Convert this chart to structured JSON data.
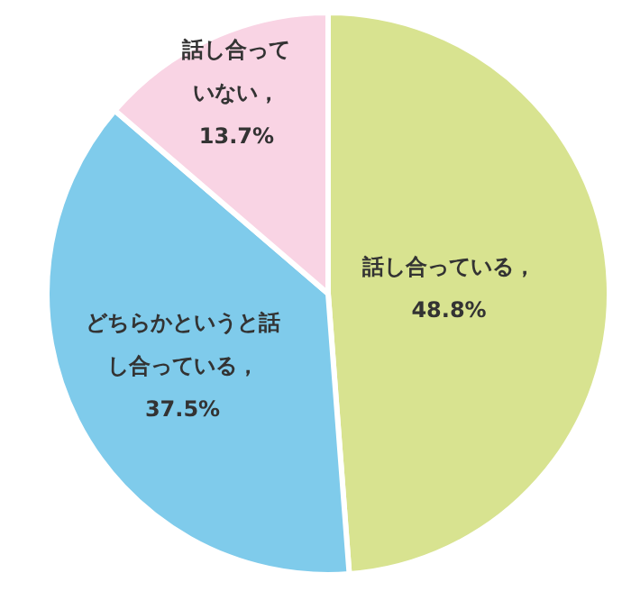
{
  "chart_data": {
    "type": "pie",
    "categories": [
      "話し合っている",
      "どちらかというと話し合っている",
      "話し合っていない"
    ],
    "values": [
      48.8,
      37.5,
      13.7
    ],
    "value_labels": [
      "，48.8%",
      "，37.5%",
      "，13.7%"
    ],
    "colors": [
      "#d8e390",
      "#7fcbeb",
      "#f9d4e4"
    ]
  }
}
